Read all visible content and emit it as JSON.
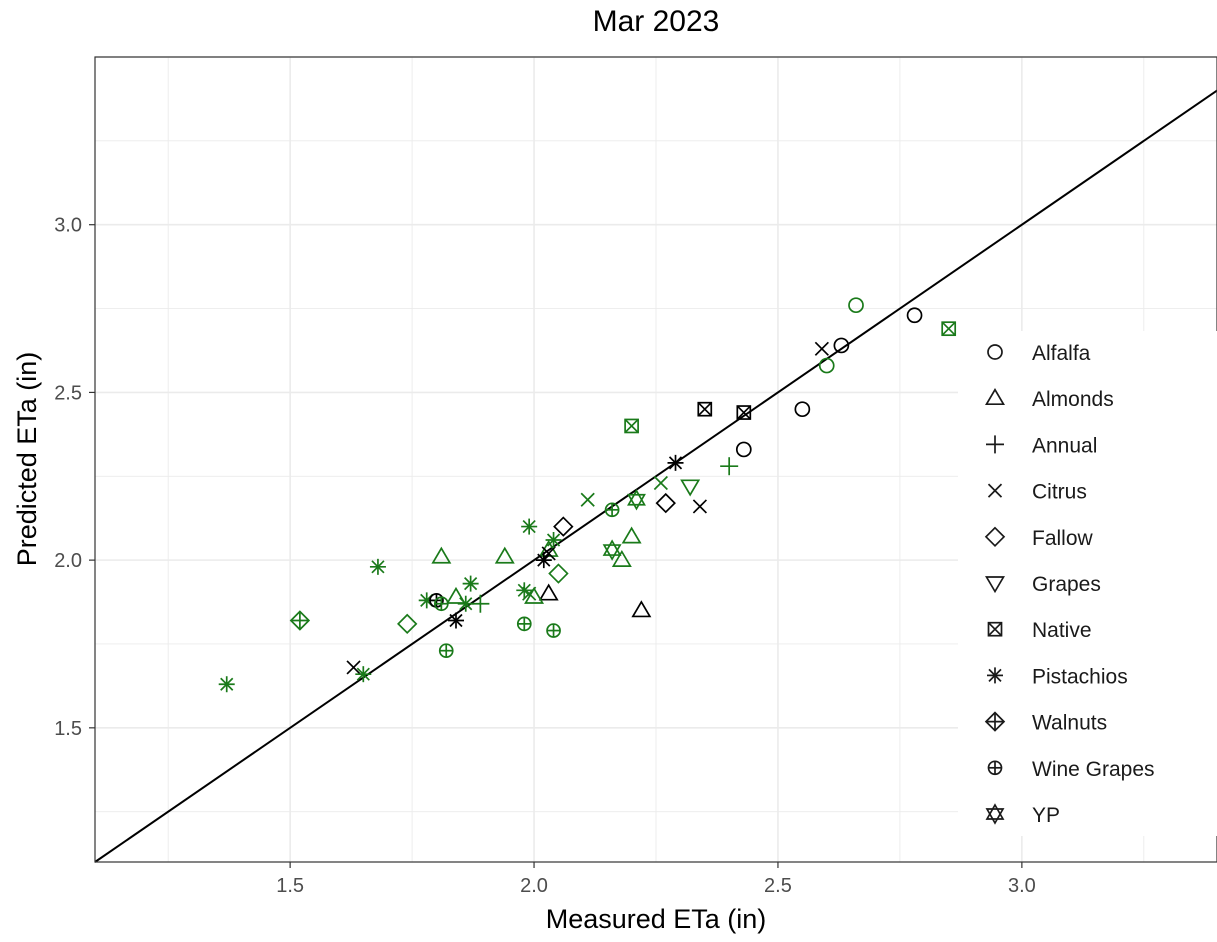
{
  "chart_data": {
    "type": "scatter",
    "title": "Mar 2023",
    "xlabel": "Measured ETa (in)",
    "ylabel": "Predicted ETa (in)",
    "xlim": [
      1.1,
      3.4
    ],
    "ylim": [
      1.1,
      3.5
    ],
    "x_ticks": [
      "1.5",
      "2.0",
      "2.5",
      "3.0"
    ],
    "y_ticks": [
      "1.5",
      "2.0",
      "2.5",
      "3.0"
    ],
    "grid": true,
    "legend_position": "right",
    "reference_line": "1:1",
    "colors": {
      "black": "#000000",
      "green": "#1a7a1a"
    },
    "series": [
      {
        "name": "Alfalfa",
        "shape": "circle",
        "points": [
          {
            "x": 2.78,
            "y": 2.73,
            "color": "black"
          },
          {
            "x": 2.63,
            "y": 2.64,
            "color": "black"
          },
          {
            "x": 2.55,
            "y": 2.45,
            "color": "black"
          },
          {
            "x": 2.43,
            "y": 2.33,
            "color": "black"
          },
          {
            "x": 2.66,
            "y": 2.76,
            "color": "green"
          },
          {
            "x": 2.6,
            "y": 2.58,
            "color": "green"
          }
        ]
      },
      {
        "name": "Almonds",
        "shape": "triangle",
        "points": [
          {
            "x": 2.03,
            "y": 1.9,
            "color": "black"
          },
          {
            "x": 2.22,
            "y": 1.85,
            "color": "black"
          },
          {
            "x": 1.81,
            "y": 2.01,
            "color": "green"
          },
          {
            "x": 1.94,
            "y": 2.01,
            "color": "green"
          },
          {
            "x": 2.2,
            "y": 2.07,
            "color": "green"
          },
          {
            "x": 2.18,
            "y": 2.0,
            "color": "green"
          },
          {
            "x": 2.0,
            "y": 1.89,
            "color": "green"
          },
          {
            "x": 1.84,
            "y": 1.89,
            "color": "green"
          },
          {
            "x": 2.03,
            "y": 2.03,
            "color": "green"
          }
        ]
      },
      {
        "name": "Annual",
        "shape": "plus",
        "points": [
          {
            "x": 2.4,
            "y": 2.28,
            "color": "green"
          },
          {
            "x": 1.89,
            "y": 1.87,
            "color": "green"
          }
        ]
      },
      {
        "name": "Citrus",
        "shape": "cross",
        "points": [
          {
            "x": 2.59,
            "y": 2.63,
            "color": "black"
          },
          {
            "x": 2.34,
            "y": 2.16,
            "color": "black"
          },
          {
            "x": 1.63,
            "y": 1.68,
            "color": "black"
          },
          {
            "x": 2.03,
            "y": 2.02,
            "color": "black"
          },
          {
            "x": 2.11,
            "y": 2.18,
            "color": "green"
          },
          {
            "x": 2.26,
            "y": 2.23,
            "color": "green"
          },
          {
            "x": 1.99,
            "y": 1.9,
            "color": "green"
          }
        ]
      },
      {
        "name": "Fallow",
        "shape": "diamond",
        "points": [
          {
            "x": 2.06,
            "y": 2.1,
            "color": "black"
          },
          {
            "x": 2.27,
            "y": 2.17,
            "color": "black"
          },
          {
            "x": 2.05,
            "y": 1.96,
            "color": "green"
          },
          {
            "x": 1.74,
            "y": 1.81,
            "color": "green"
          }
        ]
      },
      {
        "name": "Grapes",
        "shape": "triangle-down",
        "points": [
          {
            "x": 2.32,
            "y": 2.22,
            "color": "green"
          }
        ]
      },
      {
        "name": "Native",
        "shape": "square-cross",
        "points": [
          {
            "x": 2.35,
            "y": 2.45,
            "color": "black"
          },
          {
            "x": 2.43,
            "y": 2.44,
            "color": "black"
          },
          {
            "x": 2.2,
            "y": 2.4,
            "color": "green"
          },
          {
            "x": 2.85,
            "y": 2.69,
            "color": "green"
          }
        ]
      },
      {
        "name": "Pistachios",
        "shape": "asterisk",
        "points": [
          {
            "x": 2.29,
            "y": 2.29,
            "color": "black"
          },
          {
            "x": 2.02,
            "y": 2.0,
            "color": "black"
          },
          {
            "x": 1.84,
            "y": 1.82,
            "color": "black"
          },
          {
            "x": 1.37,
            "y": 1.63,
            "color": "green"
          },
          {
            "x": 1.68,
            "y": 1.98,
            "color": "green"
          },
          {
            "x": 1.99,
            "y": 2.1,
            "color": "green"
          },
          {
            "x": 2.04,
            "y": 2.06,
            "color": "green"
          },
          {
            "x": 1.87,
            "y": 1.93,
            "color": "green"
          },
          {
            "x": 1.78,
            "y": 1.88,
            "color": "green"
          },
          {
            "x": 1.98,
            "y": 1.91,
            "color": "green"
          },
          {
            "x": 1.86,
            "y": 1.87,
            "color": "green"
          },
          {
            "x": 1.65,
            "y": 1.66,
            "color": "green"
          }
        ]
      },
      {
        "name": "Walnuts",
        "shape": "diamond-plus",
        "points": [
          {
            "x": 1.52,
            "y": 1.82,
            "color": "green"
          }
        ]
      },
      {
        "name": "Wine Grapes",
        "shape": "circle-plus",
        "points": [
          {
            "x": 1.8,
            "y": 1.88,
            "color": "black"
          },
          {
            "x": 2.16,
            "y": 2.15,
            "color": "green"
          },
          {
            "x": 1.81,
            "y": 1.87,
            "color": "green"
          },
          {
            "x": 1.82,
            "y": 1.73,
            "color": "green"
          },
          {
            "x": 1.98,
            "y": 1.81,
            "color": "green"
          },
          {
            "x": 2.04,
            "y": 1.79,
            "color": "green"
          }
        ]
      },
      {
        "name": "YP",
        "shape": "star-of-david",
        "points": [
          {
            "x": 2.21,
            "y": 2.18,
            "color": "green"
          },
          {
            "x": 2.16,
            "y": 2.03,
            "color": "green"
          }
        ]
      }
    ]
  }
}
